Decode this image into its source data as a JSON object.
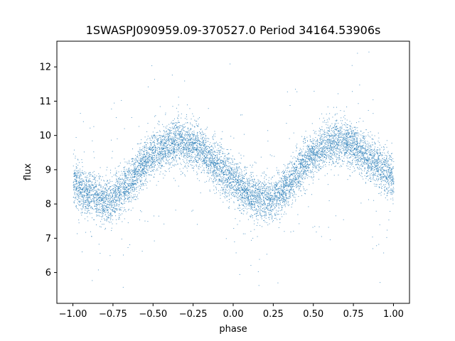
{
  "chart_data": {
    "type": "scatter",
    "title": "1SWASPJ090959.09-370527.0 Period 34164.53906s",
    "xlabel": "phase",
    "ylabel": "flux",
    "xlim": [
      -1.1,
      1.1
    ],
    "ylim": [
      5.1,
      12.75
    ],
    "xticks": [
      -1.0,
      -0.75,
      -0.5,
      -0.25,
      0.0,
      0.25,
      0.5,
      0.75,
      1.0
    ],
    "xtick_labels": [
      "−1.00",
      "−0.75",
      "−0.50",
      "−0.25",
      "0.00",
      "0.25",
      "0.50",
      "0.75",
      "1.00"
    ],
    "yticks": [
      6,
      7,
      8,
      9,
      10,
      11,
      12
    ],
    "ytick_labels": [
      "6",
      "7",
      "8",
      "9",
      "10",
      "11",
      "12"
    ],
    "grid": false,
    "legend": "none",
    "series": [
      {
        "color": "#1f77b4",
        "x": [
          -1.0,
          -0.95,
          -0.9,
          -0.85,
          -0.8,
          -0.75,
          -0.7,
          -0.65,
          -0.6,
          -0.55,
          -0.5,
          -0.45,
          -0.4,
          -0.35,
          -0.3,
          -0.25,
          -0.2,
          -0.15,
          -0.1,
          -0.05,
          0.0,
          0.05,
          0.1,
          0.15,
          0.2,
          0.25,
          0.3,
          0.35,
          0.4,
          0.45,
          0.5,
          0.55,
          0.6,
          0.65,
          0.7,
          0.75,
          0.8,
          0.85,
          0.9,
          0.95,
          1.0
        ],
        "y": [
          8.75,
          8.45,
          8.28,
          8.16,
          8.12,
          8.15,
          8.35,
          8.62,
          8.95,
          9.22,
          9.45,
          9.62,
          9.75,
          9.82,
          9.82,
          9.72,
          9.55,
          9.35,
          9.12,
          8.88,
          8.75,
          8.45,
          8.28,
          8.16,
          8.12,
          8.15,
          8.35,
          8.62,
          8.95,
          9.22,
          9.45,
          9.62,
          9.75,
          9.82,
          9.82,
          9.72,
          9.55,
          9.35,
          9.12,
          8.88,
          8.75
        ],
        "scatter_sigma": 0.32
      }
    ]
  }
}
